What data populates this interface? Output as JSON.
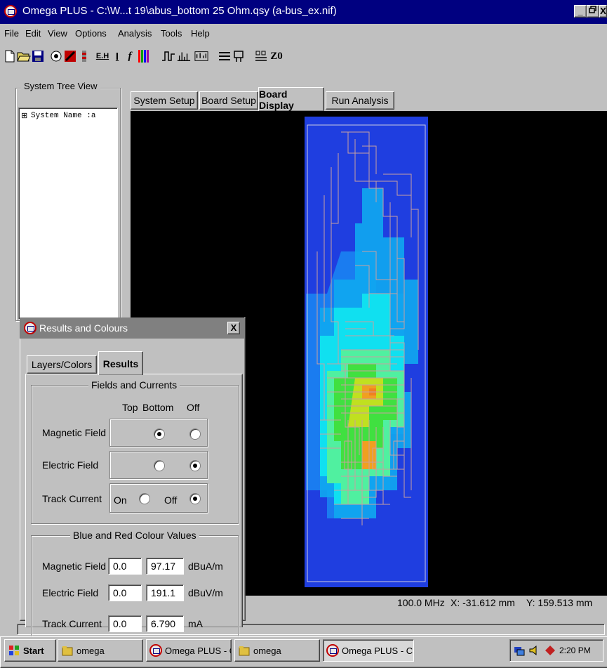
{
  "window": {
    "title": "Omega PLUS - C:\\W...t 19\\abus_bottom 25 Ohm.qsy (a-bus_ex.nif)",
    "controls": [
      "_",
      "Œ",
      "X"
    ]
  },
  "menu": [
    "File",
    "Edit",
    "View",
    "Options",
    "Analysis",
    "Tools",
    "Help"
  ],
  "toolbar": {
    "buttons": [
      "new-file",
      "open-folder",
      "save",
      "view-eye",
      "color-picker",
      "probe",
      "eh-field",
      "current",
      "function",
      "spectrum",
      "pulse",
      "waveform",
      "measure",
      "layers",
      "component",
      "mode",
      "impedance"
    ],
    "text_glyphs": {
      "eh": "E.H",
      "i": "I",
      "f": "f",
      "z": "Z0"
    }
  },
  "tree": {
    "group_title": "System Tree View",
    "item": "System Name :a",
    "expander": "⊞"
  },
  "tabs": [
    "System Setup",
    "Board Setup",
    "Board Display",
    "Run Analysis"
  ],
  "active_tab": "Board Display",
  "status": {
    "frequency": "100.0 MHz",
    "x": "X: -31.612 mm",
    "y": "Y: 159.513 mm"
  },
  "dialog": {
    "title": "Results and Colours",
    "close": "X",
    "tabs": [
      "Layers/Colors",
      "Results"
    ],
    "active_tab": "Results",
    "fields_group": "Fields and Currents",
    "columns": [
      "Top",
      "Bottom",
      "Off"
    ],
    "rows": [
      {
        "label": "Magnetic Field",
        "selected": "Bottom"
      },
      {
        "label": "Electric Field",
        "selected": "Off"
      }
    ],
    "track": {
      "label": "Track Current",
      "on": "On",
      "off": "Off",
      "selected": "Off"
    },
    "colour_group": "Blue and Red Colour Values",
    "values": [
      {
        "label": "Magnetic Field",
        "blue": "0.0",
        "red": "97.17",
        "unit": "dBuA/m"
      },
      {
        "label": "Electric Field",
        "blue": "0.0",
        "red": "191.1",
        "unit": "dBuV/m"
      },
      {
        "label": "Track Current",
        "blue": "0.0",
        "red": "6.790",
        "unit": "mA"
      }
    ]
  },
  "taskbar": {
    "start": "Start",
    "tasks": [
      "omega",
      "Omega PLUS - C:...",
      "omega",
      "Omega PLUS - C:..."
    ],
    "clock": "2:20 PM"
  },
  "colors": {
    "titlebar": "#000080",
    "face": "#c0c0c0",
    "board_blue": "#1f3ee0",
    "heat_cyan": "#10e0f0",
    "heat_green": "#40e040",
    "heat_orange": "#f08020",
    "traces": "#c8a0a0"
  }
}
